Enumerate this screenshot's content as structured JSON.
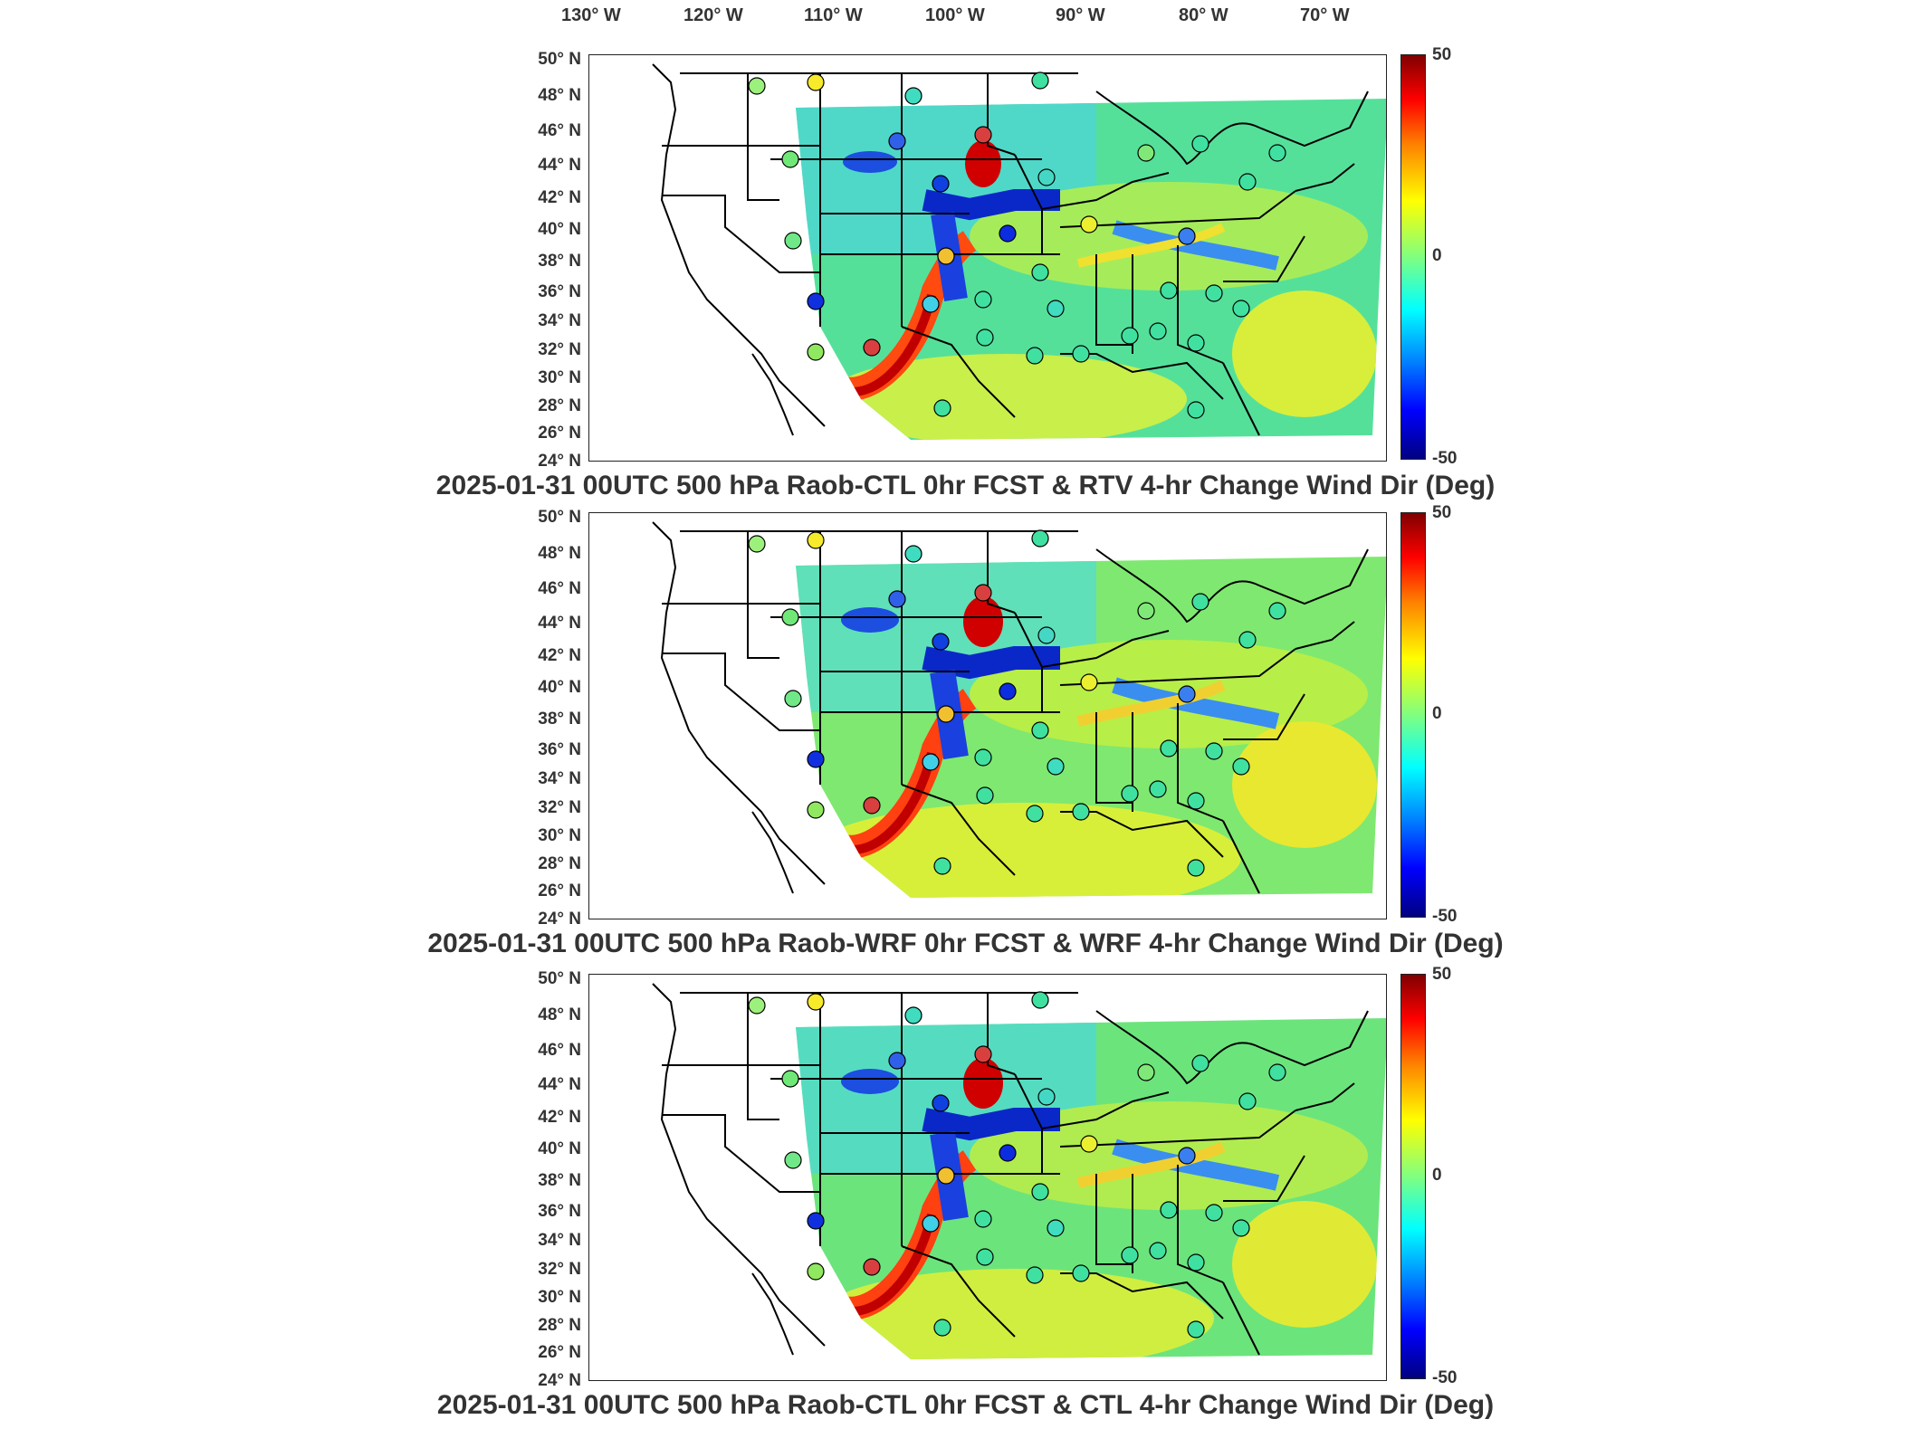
{
  "lon_ticks": [
    "130° W",
    "120° W",
    "110° W",
    "100° W",
    "90° W",
    "80° W",
    "70° W"
  ],
  "lat_ticks": [
    "50° N",
    "48° N",
    "46° N",
    "44° N",
    "42° N",
    "40° N",
    "38° N",
    "36° N",
    "34° N",
    "32° N",
    "30° N",
    "28° N",
    "26° N",
    "24° N"
  ],
  "colorbar": {
    "max": "50",
    "mid": "0",
    "min": "-50",
    "colormap": "jet"
  },
  "panels": [
    {
      "title": "2025-01-31 00UTC 500 hPa Raob-CTL 0hr FCST & RTV 4-hr Change Wind Dir (Deg)"
    },
    {
      "title": "2025-01-31 00UTC 500 hPa Raob-WRF 0hr FCST & WRF 4-hr Change Wind Dir (Deg)"
    },
    {
      "title": "2025-01-31 00UTC 500 hPa Raob-CTL 0hr FCST & CTL 4-hr Change Wind Dir (Deg)"
    }
  ],
  "colors": {
    "background_field": "#3fdcb0",
    "positive_high": "#d00000",
    "negative_high": "#0010c0",
    "coast": "#000000"
  }
}
